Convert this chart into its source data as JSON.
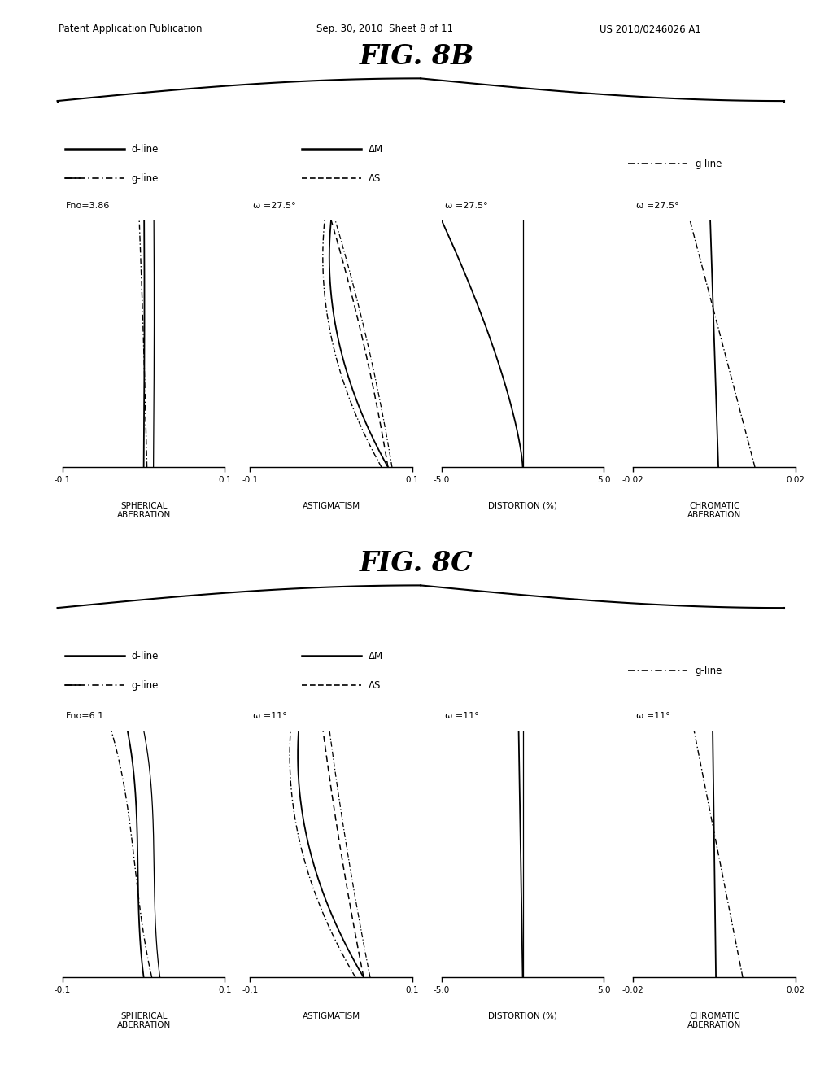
{
  "fig_title_8B": "FIG. 8B",
  "fig_title_8C": "FIG. 8C",
  "header_left": "Patent Application Publication",
  "header_mid": "Sep. 30, 2010  Sheet 8 of 11",
  "header_right": "US 2010/0246026 A1",
  "bg_color": "#ffffff",
  "line_color": "#000000",
  "panels_8B": {
    "spherical": {
      "top_label": "Fno=3.86",
      "xlim": [
        -0.1,
        0.1
      ],
      "xticks": [
        -0.1,
        0.1
      ],
      "xlabel": "SPHERICAL\nABERRATION"
    },
    "astigmatism": {
      "top_label": "ω =27.5°",
      "xlim": [
        -0.1,
        0.1
      ],
      "xticks": [
        -0.1,
        0.1
      ],
      "xlabel": "ASTIGMATISM"
    },
    "distortion": {
      "top_label": "ω =27.5°",
      "xlim": [
        -5.0,
        5.0
      ],
      "xticks": [
        -5.0,
        5.0
      ],
      "xlabel": "DISTORTION (%)"
    },
    "chromatic": {
      "top_label": "ω =27.5°",
      "xlim": [
        -0.02,
        0.02
      ],
      "xticks": [
        -0.02,
        0.02
      ],
      "xlabel": "CHROMATIC\nABERRATION"
    }
  },
  "panels_8C": {
    "spherical": {
      "top_label": "Fno=6.1",
      "xlim": [
        -0.1,
        0.1
      ],
      "xticks": [
        -0.1,
        0.1
      ],
      "xlabel": "SPHERICAL\nABERRATION"
    },
    "astigmatism": {
      "top_label": "ω =11°",
      "xlim": [
        -0.1,
        0.1
      ],
      "xticks": [
        -0.1,
        0.1
      ],
      "xlabel": "ASTIGMATISM"
    },
    "distortion": {
      "top_label": "ω =11°",
      "xlim": [
        -5.0,
        5.0
      ],
      "xticks": [
        -5.0,
        5.0
      ],
      "xlabel": "DISTORTION (%)"
    },
    "chromatic": {
      "top_label": "ω =11°",
      "xlim": [
        -0.02,
        0.02
      ],
      "xticks": [
        -0.02,
        0.02
      ],
      "xlabel": "CHROMATIC\nABERRATION"
    }
  }
}
